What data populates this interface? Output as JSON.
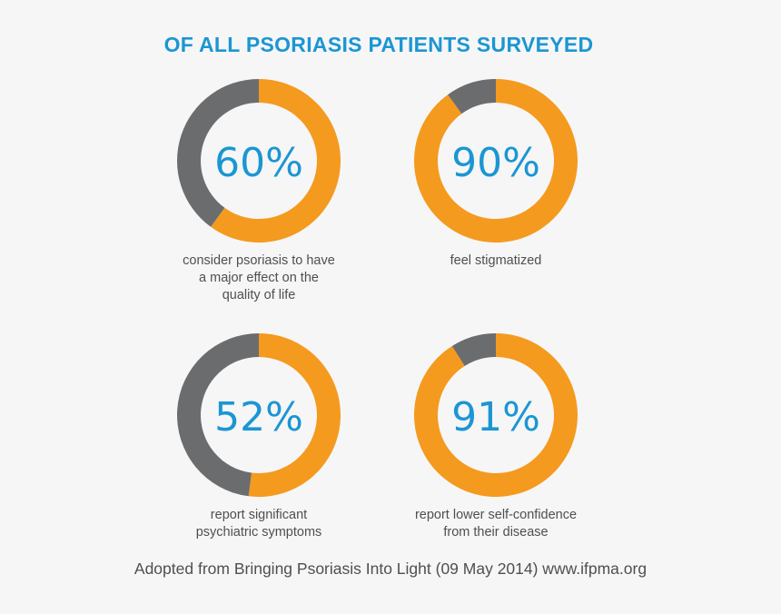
{
  "title": "OF ALL PSORIASIS PATIENTS SURVEYED",
  "source": "Adopted from Bringing Psoriasis Into Light (09 May 2014) www.ifpma.org",
  "colors": {
    "title": "#1b96d3",
    "filled": "#f49a1f",
    "remaining": "#6b6c6e",
    "percent_text": "#1b96d3",
    "caption_text": "#4f4f4f"
  },
  "chart_data": [
    {
      "type": "pie",
      "variant": "donut",
      "value": 60,
      "label": "60%",
      "caption": "consider psoriasis to have\na major effect on the\nquality of life"
    },
    {
      "type": "pie",
      "variant": "donut",
      "value": 90,
      "label": "90%",
      "caption": "feel stigmatized"
    },
    {
      "type": "pie",
      "variant": "donut",
      "value": 52,
      "label": "52%",
      "caption": "report significant\npsychiatric symptoms"
    },
    {
      "type": "pie",
      "variant": "donut",
      "value": 91,
      "label": "91%",
      "caption": "report lower self-confidence\nfrom their disease"
    }
  ]
}
